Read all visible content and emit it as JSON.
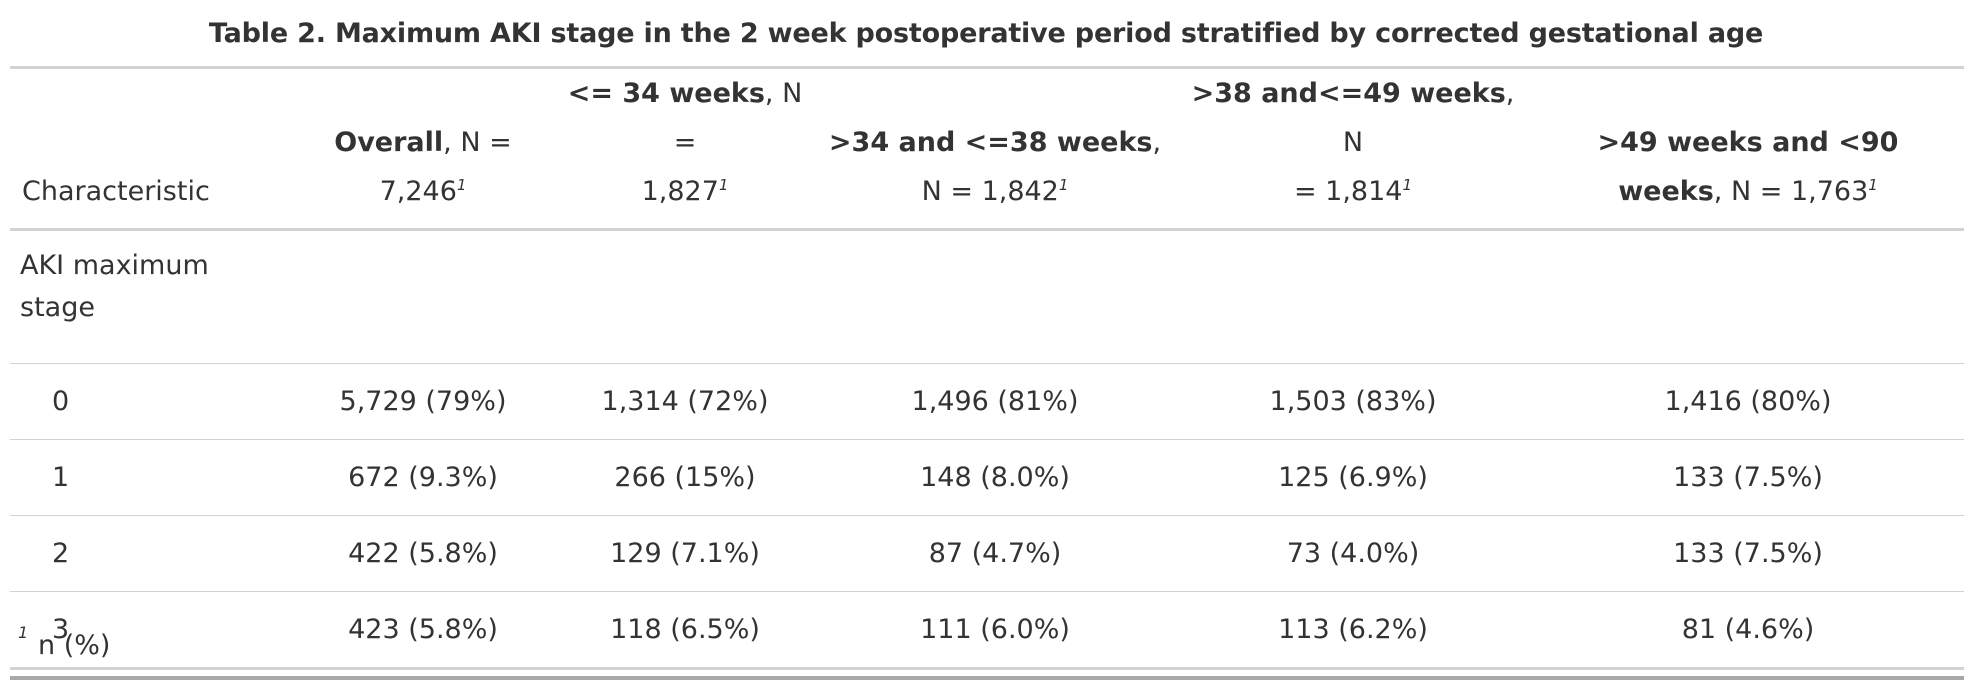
{
  "caption": "Table 2. Maximum AKI stage in the 2 week postoperative period stratified by corrected gestational age",
  "header": {
    "characteristic": "Characteristic",
    "columns": [
      {
        "bold": "Overall",
        "rest_line1": ", N =",
        "rest_line2": "7,246",
        "sup": "1"
      },
      {
        "bold": "<= 34 weeks",
        "rest_line1": ", N =",
        "rest_line2": "1,827",
        "sup": "1"
      },
      {
        "bold": ">34 and <=38 weeks",
        "rest_line1": ",",
        "rest_line2": "N = 1,842",
        "sup": "1"
      },
      {
        "bold": ">38 and<=49 weeks",
        "rest_line1": ", N",
        "rest_line2": "= 1,814",
        "sup": "1"
      },
      {
        "bold_line1": ">49 weeks and <90",
        "bold_line2": "weeks",
        "rest_line2": ", N = 1,763",
        "sup": "1"
      }
    ]
  },
  "group_label": "AKI maximum stage",
  "rows": [
    {
      "label": "0",
      "values": [
        "5,729 (79%)",
        "1,314 (72%)",
        "1,496 (81%)",
        "1,503 (83%)",
        "1,416 (80%)"
      ]
    },
    {
      "label": "1",
      "values": [
        "672 (9.3%)",
        "266 (15%)",
        "148 (8.0%)",
        "125 (6.9%)",
        "133 (7.5%)"
      ]
    },
    {
      "label": "2",
      "values": [
        "422 (5.8%)",
        "129 (7.1%)",
        "87 (4.7%)",
        "73 (4.0%)",
        "133 (7.5%)"
      ]
    },
    {
      "label": "3",
      "values": [
        "423 (5.8%)",
        "118 (6.5%)",
        "111 (6.0%)",
        "113 (6.2%)",
        "81 (4.6%)"
      ]
    }
  ],
  "footnote": {
    "symbol": "1",
    "text": "n (%)"
  }
}
